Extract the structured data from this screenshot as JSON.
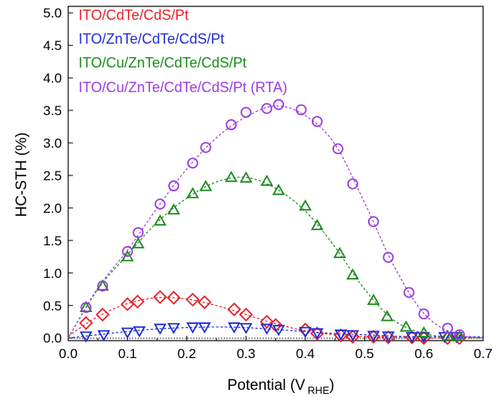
{
  "chart_data": {
    "type": "scatter",
    "xlabel": "Potential (V",
    "xlabel_sub": "RHE",
    "xlabel_close": ")",
    "ylabel": "HC-STH (%)",
    "xlim": [
      0.0,
      0.7
    ],
    "ylim": [
      0.0,
      5.0
    ],
    "xticks": [
      "0.0",
      "0.1",
      "0.2",
      "0.3",
      "0.4",
      "0.5",
      "0.6",
      "0.7"
    ],
    "yticks": [
      "0.0",
      "0.5",
      "1.0",
      "1.5",
      "2.0",
      "2.5",
      "3.0",
      "3.5",
      "4.0",
      "4.5",
      "5.0"
    ],
    "legend_position": "top-left",
    "grid": false,
    "series": [
      {
        "name": "ITO/CdTe/CdS/Pt",
        "color": "#e8202a",
        "marker": "diamond",
        "points": [
          [
            0.03,
            0.23
          ],
          [
            0.058,
            0.36
          ],
          [
            0.1,
            0.52
          ],
          [
            0.117,
            0.56
          ],
          [
            0.155,
            0.63
          ],
          [
            0.178,
            0.62
          ],
          [
            0.21,
            0.59
          ],
          [
            0.23,
            0.55
          ],
          [
            0.28,
            0.44
          ],
          [
            0.3,
            0.36
          ],
          [
            0.335,
            0.25
          ],
          [
            0.35,
            0.2
          ],
          [
            0.4,
            0.13
          ],
          [
            0.42,
            0.07
          ],
          [
            0.46,
            0.04
          ],
          [
            0.48,
            0.02
          ],
          [
            0.515,
            0.02
          ],
          [
            0.54,
            0.01
          ],
          [
            0.58,
            0.01
          ],
          [
            0.6,
            0.0
          ],
          [
            0.64,
            0.0
          ],
          [
            0.66,
            0.0
          ]
        ],
        "fit": [
          [
            0.0,
            0.03
          ],
          [
            0.05,
            0.33
          ],
          [
            0.1,
            0.53
          ],
          [
            0.15,
            0.62
          ],
          [
            0.2,
            0.6
          ],
          [
            0.25,
            0.5
          ],
          [
            0.3,
            0.36
          ],
          [
            0.35,
            0.22
          ],
          [
            0.4,
            0.11
          ],
          [
            0.45,
            0.05
          ],
          [
            0.5,
            0.02
          ],
          [
            0.55,
            0.01
          ],
          [
            0.6,
            0.0
          ],
          [
            0.7,
            0.0
          ]
        ]
      },
      {
        "name": "ITO/ZnTe/CdTe/CdS/Pt",
        "color": "#1d2bd6",
        "marker": "triangle-down",
        "points": [
          [
            0.03,
            0.03
          ],
          [
            0.06,
            0.05
          ],
          [
            0.1,
            0.09
          ],
          [
            0.12,
            0.11
          ],
          [
            0.155,
            0.15
          ],
          [
            0.178,
            0.16
          ],
          [
            0.21,
            0.17
          ],
          [
            0.23,
            0.17
          ],
          [
            0.28,
            0.17
          ],
          [
            0.3,
            0.16
          ],
          [
            0.335,
            0.15
          ],
          [
            0.355,
            0.13
          ],
          [
            0.4,
            0.1
          ],
          [
            0.42,
            0.08
          ],
          [
            0.46,
            0.06
          ],
          [
            0.48,
            0.05
          ],
          [
            0.515,
            0.04
          ],
          [
            0.54,
            0.03
          ],
          [
            0.58,
            0.02
          ],
          [
            0.6,
            0.02
          ],
          [
            0.635,
            0.02
          ],
          [
            0.655,
            0.02
          ]
        ],
        "fit": [
          [
            0.0,
            0.0
          ],
          [
            0.05,
            0.05
          ],
          [
            0.1,
            0.1
          ],
          [
            0.15,
            0.14
          ],
          [
            0.2,
            0.16
          ],
          [
            0.25,
            0.17
          ],
          [
            0.3,
            0.16
          ],
          [
            0.35,
            0.13
          ],
          [
            0.4,
            0.1
          ],
          [
            0.45,
            0.07
          ],
          [
            0.5,
            0.05
          ],
          [
            0.55,
            0.03
          ],
          [
            0.6,
            0.02
          ],
          [
            0.7,
            0.02
          ]
        ]
      },
      {
        "name": "ITO/Cu/ZnTe/CdTe/CdS/Pt",
        "color": "#1a8a1a",
        "marker": "triangle-up",
        "points": [
          [
            0.03,
            0.47
          ],
          [
            0.058,
            0.8
          ],
          [
            0.1,
            1.25
          ],
          [
            0.118,
            1.45
          ],
          [
            0.155,
            1.8
          ],
          [
            0.178,
            1.97
          ],
          [
            0.21,
            2.22
          ],
          [
            0.232,
            2.33
          ],
          [
            0.275,
            2.47
          ],
          [
            0.3,
            2.46
          ],
          [
            0.335,
            2.41
          ],
          [
            0.355,
            2.27
          ],
          [
            0.4,
            2.03
          ],
          [
            0.42,
            1.73
          ],
          [
            0.458,
            1.3
          ],
          [
            0.48,
            0.97
          ],
          [
            0.515,
            0.58
          ],
          [
            0.538,
            0.33
          ],
          [
            0.57,
            0.17
          ],
          [
            0.6,
            0.08
          ],
          [
            0.64,
            0.03
          ],
          [
            0.66,
            0.02
          ]
        ],
        "fit": [
          [
            0.0,
            0.0
          ],
          [
            0.05,
            0.75
          ],
          [
            0.1,
            1.28
          ],
          [
            0.15,
            1.78
          ],
          [
            0.2,
            2.15
          ],
          [
            0.25,
            2.4
          ],
          [
            0.3,
            2.47
          ],
          [
            0.35,
            2.3
          ],
          [
            0.4,
            1.95
          ],
          [
            0.45,
            1.4
          ],
          [
            0.5,
            0.75
          ],
          [
            0.55,
            0.27
          ],
          [
            0.6,
            0.07
          ],
          [
            0.65,
            0.01
          ],
          [
            0.7,
            0.0
          ]
        ]
      },
      {
        "name": "ITO/Cu/ZnTe/CdTe/CdS/Pt (RTA)",
        "color": "#9b3be0",
        "marker": "circle",
        "points": [
          [
            0.03,
            0.47
          ],
          [
            0.058,
            0.8
          ],
          [
            0.1,
            1.33
          ],
          [
            0.118,
            1.62
          ],
          [
            0.155,
            2.06
          ],
          [
            0.178,
            2.34
          ],
          [
            0.21,
            2.69
          ],
          [
            0.232,
            2.93
          ],
          [
            0.275,
            3.28
          ],
          [
            0.3,
            3.47
          ],
          [
            0.335,
            3.53
          ],
          [
            0.355,
            3.59
          ],
          [
            0.393,
            3.51
          ],
          [
            0.42,
            3.33
          ],
          [
            0.455,
            2.91
          ],
          [
            0.48,
            2.37
          ],
          [
            0.515,
            1.79
          ],
          [
            0.54,
            1.24
          ],
          [
            0.575,
            0.7
          ],
          [
            0.6,
            0.37
          ],
          [
            0.64,
            0.15
          ],
          [
            0.66,
            0.05
          ]
        ],
        "fit": [
          [
            0.0,
            0.0
          ],
          [
            0.05,
            0.77
          ],
          [
            0.1,
            1.35
          ],
          [
            0.15,
            2.0
          ],
          [
            0.2,
            2.6
          ],
          [
            0.25,
            3.08
          ],
          [
            0.3,
            3.4
          ],
          [
            0.35,
            3.57
          ],
          [
            0.4,
            3.42
          ],
          [
            0.45,
            2.98
          ],
          [
            0.5,
            2.08
          ],
          [
            0.55,
            1.1
          ],
          [
            0.6,
            0.38
          ],
          [
            0.65,
            0.07
          ],
          [
            0.7,
            0.0
          ]
        ]
      }
    ]
  }
}
